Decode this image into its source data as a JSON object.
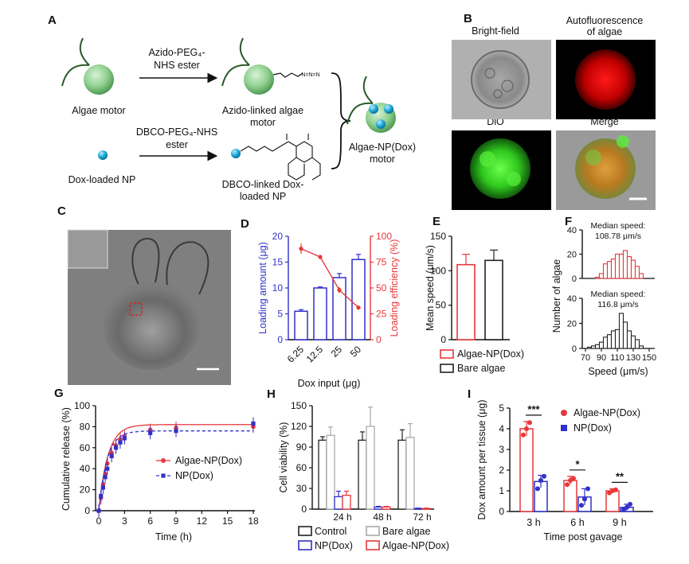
{
  "panel_letters": [
    "A",
    "B",
    "C",
    "D",
    "E",
    "F",
    "G",
    "H",
    "I"
  ],
  "panel_a": {
    "label_algae_motor": "Algae motor",
    "label_dox_np": "Dox-loaded NP",
    "arrow1_line1": "Azido-PEG₄-",
    "arrow1_line2": "NHS ester",
    "arrow2_line1": "DBCO-PEG₄-NHS",
    "arrow2_line2": "ester",
    "label_azido_line1": "Azido-linked algae",
    "label_azido_line2": "motor",
    "label_dbco_line1": "DBCO-linked Dox-",
    "label_dbco_line2": "loaded NP",
    "label_product_line1": "Algae-NP(Dox)",
    "label_product_line2": "motor",
    "colors": {
      "algae": "#8fcf8f",
      "np": "#1aa8d8"
    }
  },
  "panel_b": {
    "title_brightfield": "Bright-field",
    "title_auto_line1": "Autofluorescence",
    "title_auto_line2": "of algae",
    "title_dio": "DiO",
    "title_merge": "Merge"
  },
  "colors": {
    "red": "#e8383b",
    "blue": "#3030c8",
    "black": "#222222",
    "gray": "#aaaaaa"
  },
  "chart_data": [
    {
      "panel": "D",
      "type": "bar",
      "categories": [
        "6.25",
        "12.5",
        "25",
        "50"
      ],
      "xlabel": "Dox input (μg)",
      "ylabel": "Loading amount (μg)",
      "ylim": [
        0,
        20
      ],
      "yticks": [
        0,
        5,
        10,
        15,
        20
      ],
      "series": [
        {
          "values": [
            5.5,
            10.0,
            12.0,
            15.5
          ],
          "errors": [
            0.3,
            0.2,
            0.8,
            1.0
          ]
        }
      ],
      "secondary": {
        "type": "line",
        "ylabel": "Loading efficiency (%)",
        "ylim": [
          0,
          100
        ],
        "yticks": [
          0,
          25,
          50,
          75,
          100
        ],
        "values": [
          88,
          80,
          48,
          31
        ],
        "errors": [
          5,
          1,
          3,
          2
        ]
      }
    },
    {
      "panel": "E",
      "type": "bar",
      "categories": [
        "Algae-NP(Dox)",
        "Bare algae"
      ],
      "ylabel": "Mean speed (μm/s)",
      "ylim": [
        0,
        150
      ],
      "yticks": [
        0,
        50,
        100,
        150
      ],
      "values": [
        108.8,
        115.0
      ],
      "errors": [
        15,
        15
      ],
      "legend": [
        "Algae-NP(Dox)",
        "Bare algae"
      ]
    },
    {
      "panel": "F",
      "type": "bar",
      "xlabel": "Speed (μm/s)",
      "ylabel": "Number of algae",
      "xticks": [
        "70",
        "90",
        "110",
        "130",
        "150"
      ],
      "xlim": [
        70,
        150
      ],
      "ylim": [
        0,
        40
      ],
      "yticks": [
        0,
        20,
        40
      ],
      "series": [
        {
          "name": "Algae-NP(Dox)",
          "annotation_line1": "Median speed:",
          "annotation_line2": "108.78 μm/s",
          "bin_centers": [
            85,
            90,
            95,
            100,
            105,
            110,
            115,
            120,
            125,
            130,
            135,
            140
          ],
          "values": [
            1,
            4,
            12,
            14,
            16,
            20,
            20,
            23,
            18,
            15,
            10,
            4
          ]
        },
        {
          "name": "Bare algae",
          "annotation_line1": "Median speed:",
          "annotation_line2": "116.8 μm/s",
          "bin_centers": [
            75,
            80,
            85,
            90,
            95,
            100,
            105,
            110,
            115,
            120,
            125,
            130,
            135,
            140
          ],
          "values": [
            1,
            2,
            3,
            5,
            9,
            11,
            14,
            15,
            28,
            21,
            14,
            10,
            7,
            2
          ]
        }
      ]
    },
    {
      "panel": "G",
      "type": "line",
      "xlabel": "Time (h)",
      "ylabel": "Cumulative release (%)",
      "xlim": [
        0,
        18
      ],
      "ylim": [
        0,
        100
      ],
      "xticks": [
        0,
        3,
        6,
        9,
        12,
        15,
        18
      ],
      "yticks": [
        0,
        20,
        40,
        60,
        80,
        100
      ],
      "series": [
        {
          "name": "Algae-NP(Dox)",
          "x": [
            0,
            0.25,
            0.5,
            0.75,
            1,
            1.5,
            2,
            2.5,
            3,
            6,
            9,
            18
          ],
          "y": [
            0,
            12,
            25,
            35,
            45,
            55,
            62,
            68,
            71,
            77,
            79,
            80
          ],
          "fit_plateau": 82,
          "fit_k": 0.95
        },
        {
          "name": "NP(Dox)",
          "x": [
            0,
            0.25,
            0.5,
            0.75,
            1,
            1.5,
            2,
            2.5,
            3,
            6,
            9,
            18
          ],
          "y": [
            0,
            14,
            22,
            32,
            40,
            52,
            60,
            65,
            69,
            74,
            76,
            83
          ],
          "fit_plateau": 76,
          "fit_k": 1.05
        }
      ]
    },
    {
      "panel": "H",
      "type": "bar",
      "categories": [
        "24 h",
        "48 h",
        "72 h"
      ],
      "ylabel": "Cell viability (%)",
      "ylim": [
        0,
        150
      ],
      "yticks": [
        0,
        30,
        60,
        90,
        120,
        150
      ],
      "series": [
        {
          "name": "Control",
          "values": [
            100,
            100,
            100
          ],
          "errors": [
            5,
            12,
            15
          ]
        },
        {
          "name": "Bare algae",
          "values": [
            107,
            120,
            104
          ],
          "errors": [
            12,
            28,
            20
          ]
        },
        {
          "name": "NP(Dox)",
          "values": [
            18,
            3,
            1
          ],
          "errors": [
            8,
            1,
            0.5
          ]
        },
        {
          "name": "Algae-NP(Dox)",
          "values": [
            20,
            3,
            1
          ],
          "errors": [
            6,
            1,
            0.5
          ]
        }
      ]
    },
    {
      "panel": "I",
      "type": "bar",
      "categories": [
        "3 h",
        "6 h",
        "9 h"
      ],
      "xlabel": "Time post gavage",
      "ylabel": "Dox amount per tissue (μg)",
      "ylim": [
        0,
        5
      ],
      "yticks": [
        0,
        1,
        2,
        3,
        4,
        5
      ],
      "series": [
        {
          "name": "Algae-NP(Dox)",
          "values": [
            4.0,
            1.5,
            1.0
          ],
          "errors": [
            0.35,
            0.2,
            0.1
          ],
          "points": [
            [
              3.7,
              4.0,
              4.3
            ],
            [
              1.3,
              1.5,
              1.6
            ],
            [
              0.9,
              1.0,
              1.05
            ]
          ]
        },
        {
          "name": "NP(Dox)",
          "values": [
            1.45,
            0.7,
            0.2
          ],
          "errors": [
            0.3,
            0.4,
            0.15
          ],
          "points": [
            [
              1.1,
              1.5,
              1.7
            ],
            [
              0.3,
              0.6,
              1.1
            ],
            [
              0.1,
              0.2,
              0.35
            ]
          ]
        }
      ],
      "significance": [
        "***",
        "*",
        "**"
      ]
    }
  ]
}
